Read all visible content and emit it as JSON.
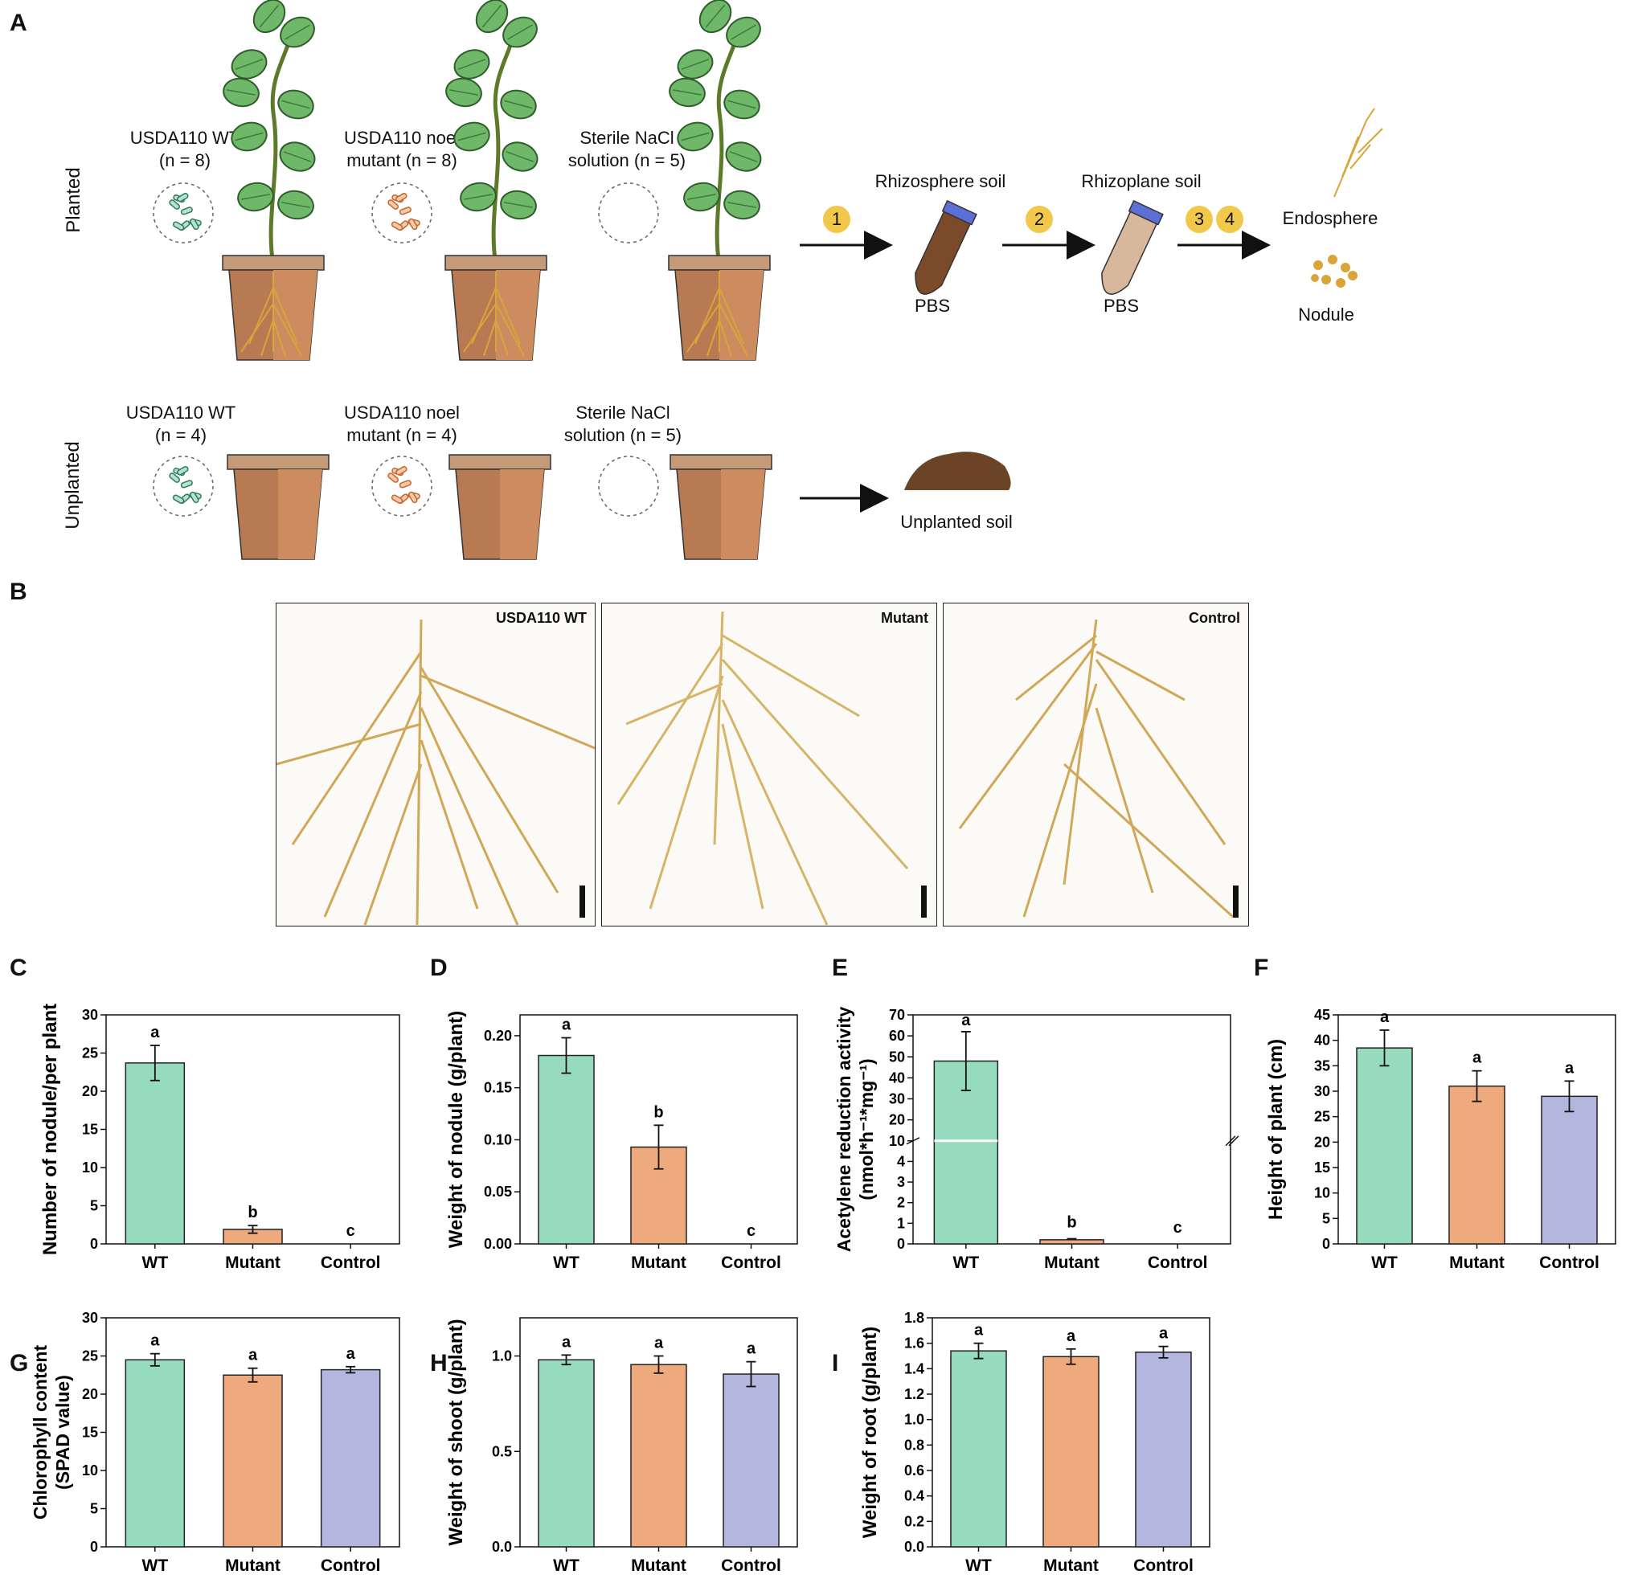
{
  "panel_labels": [
    "A",
    "B",
    "C",
    "D",
    "E",
    "F",
    "G",
    "H",
    "I"
  ],
  "panelA": {
    "row_labels": {
      "planted": "Planted",
      "unplanted": "Unplanted"
    },
    "planted_groups": [
      {
        "line1": "USDA110 WT",
        "line2": "(n = 8)"
      },
      {
        "line1": "USDA110 noel",
        "line2": "mutant (n = 8)"
      },
      {
        "line1": "Sterile NaCl",
        "line2": "solution (n = 5)"
      }
    ],
    "unplanted_groups": [
      {
        "line1": "USDA110 WT",
        "line2": "(n = 4)"
      },
      {
        "line1": "USDA110 noel",
        "line2": "mutant (n = 4)"
      },
      {
        "line1": "Sterile NaCl",
        "line2": "solution (n = 5)"
      }
    ],
    "steps": [
      "1",
      "2",
      "3",
      "4"
    ],
    "compartments": {
      "rhizosphere": "Rhizosphere soil",
      "rhizoplane": "Rhizoplane soil",
      "pbs1": "PBS",
      "pbs2": "PBS",
      "endosphere": "Endosphere",
      "nodule": "Nodule",
      "unplanted_soil": "Unplanted soil"
    },
    "colors": {
      "wt_bacteria": "#5fa88a",
      "mutant_bacteria": "#e08a5a",
      "pot": "#b87a52",
      "leaf": "#6fb86a",
      "step_circle": "#f2c84b"
    }
  },
  "panelB": {
    "captions": [
      "USDA110 WT",
      "Mutant",
      "Control"
    ]
  },
  "series_colors": {
    "WT": "#96dbbd",
    "Mutant": "#eeaa7c",
    "Control": "#b3b6de"
  },
  "chart_data": [
    {
      "panel": "C",
      "type": "bar",
      "categories": [
        "WT",
        "Mutant",
        "Control"
      ],
      "values": [
        23.7,
        1.9,
        0
      ],
      "errors": [
        2.3,
        0.5,
        0
      ],
      "letters": [
        "a",
        "b",
        "c"
      ],
      "ylabel": "Number of nodule/per plant",
      "ylim": [
        0,
        30
      ],
      "yticks": [
        0,
        5,
        10,
        15,
        20,
        25,
        30
      ],
      "ytick_labels": [
        "0",
        "5",
        "10",
        "15",
        "20",
        "25",
        "30"
      ]
    },
    {
      "panel": "D",
      "type": "bar",
      "categories": [
        "WT",
        "Mutant",
        "Control"
      ],
      "values": [
        0.181,
        0.093,
        0
      ],
      "errors": [
        0.017,
        0.021,
        0
      ],
      "letters": [
        "a",
        "b",
        "c"
      ],
      "ylabel": "Weight of nodule (g/plant)",
      "ylim": [
        0,
        0.22
      ],
      "yticks": [
        0,
        0.05,
        0.1,
        0.15,
        0.2
      ],
      "ytick_labels": [
        "0.00",
        "0.05",
        "0.10",
        "0.15",
        "0.20"
      ]
    },
    {
      "panel": "E",
      "type": "bar",
      "categories": [
        "WT",
        "Mutant",
        "Control"
      ],
      "values": [
        48,
        0.2,
        0
      ],
      "errors": [
        14,
        0.05,
        0
      ],
      "letters": [
        "a",
        "b",
        "c"
      ],
      "ylabel_line1": "Acetylene reduction activity",
      "ylabel_line2": "(nmol*h⁻¹*mg⁻¹)",
      "broken_axis": true,
      "lower_ylim": [
        0,
        5
      ],
      "upper_ylim": [
        10,
        70
      ],
      "yticks_lower": [
        0,
        1,
        2,
        3,
        4
      ],
      "ytick_labels_lower": [
        "0",
        "1",
        "2",
        "3",
        "4"
      ],
      "yticks_upper": [
        10,
        20,
        30,
        40,
        50,
        60,
        70
      ],
      "ytick_labels_upper": [
        "10",
        "20",
        "30",
        "40",
        "50",
        "60",
        "70"
      ]
    },
    {
      "panel": "F",
      "type": "bar",
      "categories": [
        "WT",
        "Mutant",
        "Control"
      ],
      "values": [
        38.5,
        31,
        29
      ],
      "errors": [
        3.5,
        3,
        3
      ],
      "letters": [
        "a",
        "a",
        "a"
      ],
      "ylabel": "Height of plant (cm)",
      "ylim": [
        0,
        45
      ],
      "yticks": [
        0,
        5,
        10,
        15,
        20,
        25,
        30,
        35,
        40,
        45
      ],
      "ytick_labels": [
        "0",
        "5",
        "10",
        "15",
        "20",
        "25",
        "30",
        "35",
        "40",
        "45"
      ]
    },
    {
      "panel": "G",
      "type": "bar",
      "categories": [
        "WT",
        "Mutant",
        "Control"
      ],
      "values": [
        24.5,
        22.5,
        23.2
      ],
      "errors": [
        0.8,
        0.9,
        0.4
      ],
      "letters": [
        "a",
        "a",
        "a"
      ],
      "ylabel_line1": "Chlorophyll content",
      "ylabel_line2": "(SPAD value)",
      "ylim": [
        0,
        30
      ],
      "yticks": [
        0,
        5,
        10,
        15,
        20,
        25,
        30
      ],
      "ytick_labels": [
        "0",
        "5",
        "10",
        "15",
        "20",
        "25",
        "30"
      ]
    },
    {
      "panel": "H",
      "type": "bar",
      "categories": [
        "WT",
        "Mutant",
        "Control"
      ],
      "values": [
        0.98,
        0.955,
        0.905
      ],
      "errors": [
        0.025,
        0.045,
        0.065
      ],
      "letters": [
        "a",
        "a",
        "a"
      ],
      "ylabel": "Weight of shoot (g/plant)",
      "ylim": [
        0,
        1.2
      ],
      "yticks": [
        0,
        0.5,
        1.0
      ],
      "ytick_labels": [
        "0.0",
        "0.5",
        "1.0"
      ]
    },
    {
      "panel": "I",
      "type": "bar",
      "categories": [
        "WT",
        "Mutant",
        "Control"
      ],
      "values": [
        1.54,
        1.495,
        1.53
      ],
      "errors": [
        0.06,
        0.06,
        0.045
      ],
      "letters": [
        "a",
        "a",
        "a"
      ],
      "ylabel": "Weight of root (g/plant)",
      "ylim": [
        0,
        1.8
      ],
      "yticks": [
        0,
        0.2,
        0.4,
        0.6,
        0.8,
        1.0,
        1.2,
        1.4,
        1.6,
        1.8
      ],
      "ytick_labels": [
        "0.0",
        "0.2",
        "0.4",
        "0.6",
        "0.8",
        "1.0",
        "1.2",
        "1.4",
        "1.6",
        "1.8"
      ]
    }
  ]
}
